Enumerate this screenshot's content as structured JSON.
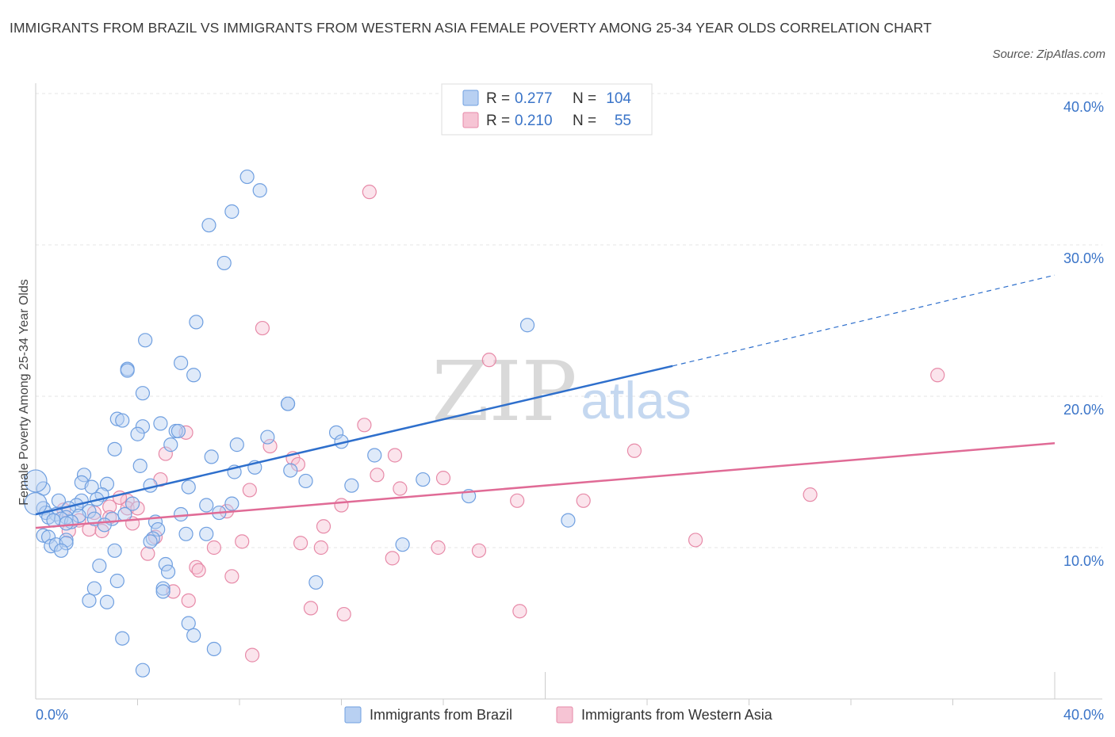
{
  "title": "IMMIGRANTS FROM BRAZIL VS IMMIGRANTS FROM WESTERN ASIA FEMALE POVERTY AMONG 25-34 YEAR OLDS CORRELATION CHART",
  "source": "Source: ZipAtlas.com",
  "watermark": {
    "zip": "ZIP",
    "atlas": "atlas"
  },
  "colors": {
    "brazil_fill": "#b8d0f2",
    "brazil_stroke": "#6f9fe0",
    "brazil_line": "#2e6fcc",
    "wasia_fill": "#f6c4d4",
    "wasia_stroke": "#e78aa8",
    "wasia_line": "#e06b96",
    "value_text": "#3a74c8"
  },
  "legend": {
    "rows": [
      {
        "r_label": "R = ",
        "r_value": "0.277",
        "n_label": "N = ",
        "n_value": "104"
      },
      {
        "r_label": "R = ",
        "r_value": "0.210",
        "n_label": "N = ",
        "n_value": "55"
      }
    ]
  },
  "chart_data": {
    "type": "scatter",
    "ylabel": "Female Poverty Among 25-34 Year Olds",
    "xlim": [
      0,
      40
    ],
    "ylim": [
      0,
      40
    ],
    "x_tick_labels": [
      "0.0%",
      "40.0%"
    ],
    "y_ticks": [
      10,
      20,
      30,
      40
    ],
    "y_tick_labels": [
      "10.0%",
      "20.0%",
      "30.0%",
      "40.0%"
    ],
    "grid": true,
    "legend_position": "bottom-center",
    "series": [
      {
        "name": "Immigrants from Brazil",
        "R": 0.277,
        "N": 104,
        "trend": {
          "x0": 0.0,
          "y0": 12.2,
          "x1": 25.0,
          "y1": 22.0,
          "dash_to_x": 40.0,
          "dash_to_y": 28.0
        },
        "points": [
          [
            8.3,
            34.5
          ],
          [
            8.8,
            33.6
          ],
          [
            7.7,
            32.2
          ],
          [
            6.8,
            31.3
          ],
          [
            7.4,
            28.8
          ],
          [
            6.3,
            24.9
          ],
          [
            19.3,
            24.7
          ],
          [
            4.3,
            23.7
          ],
          [
            5.7,
            22.2
          ],
          [
            3.6,
            21.8
          ],
          [
            3.6,
            21.7
          ],
          [
            6.2,
            21.4
          ],
          [
            4.2,
            20.2
          ],
          [
            9.9,
            19.5
          ],
          [
            9.9,
            19.5
          ],
          [
            3.2,
            18.5
          ],
          [
            3.4,
            18.4
          ],
          [
            4.2,
            18.0
          ],
          [
            4.9,
            18.2
          ],
          [
            5.5,
            17.7
          ],
          [
            5.6,
            17.7
          ],
          [
            4.0,
            17.5
          ],
          [
            11.8,
            17.6
          ],
          [
            9.1,
            17.3
          ],
          [
            12.0,
            17.0
          ],
          [
            7.9,
            16.8
          ],
          [
            5.3,
            16.8
          ],
          [
            3.1,
            16.5
          ],
          [
            13.3,
            16.1
          ],
          [
            6.9,
            16.0
          ],
          [
            4.1,
            15.4
          ],
          [
            8.6,
            15.3
          ],
          [
            10.0,
            15.1
          ],
          [
            7.8,
            15.0
          ],
          [
            1.9,
            14.8
          ],
          [
            15.2,
            14.5
          ],
          [
            1.8,
            14.3
          ],
          [
            2.8,
            14.2
          ],
          [
            10.6,
            14.4
          ],
          [
            4.5,
            14.1
          ],
          [
            6.0,
            14.0
          ],
          [
            2.2,
            14.0
          ],
          [
            12.4,
            14.1
          ],
          [
            0.3,
            13.9
          ],
          [
            2.6,
            13.5
          ],
          [
            17.0,
            13.4
          ],
          [
            1.8,
            13.1
          ],
          [
            0.9,
            13.1
          ],
          [
            2.4,
            13.2
          ],
          [
            3.8,
            12.9
          ],
          [
            7.7,
            12.9
          ],
          [
            6.7,
            12.8
          ],
          [
            1.6,
            12.8
          ],
          [
            0.3,
            12.6
          ],
          [
            1.3,
            12.6
          ],
          [
            2.1,
            12.4
          ],
          [
            7.2,
            12.3
          ],
          [
            0.4,
            12.3
          ],
          [
            0.8,
            12.2
          ],
          [
            5.7,
            12.2
          ],
          [
            3.5,
            12.2
          ],
          [
            1.7,
            12.1
          ],
          [
            0.5,
            12.0
          ],
          [
            1.2,
            12.0
          ],
          [
            1.0,
            11.9
          ],
          [
            2.3,
            11.9
          ],
          [
            0.7,
            11.8
          ],
          [
            1.4,
            11.7
          ],
          [
            4.7,
            11.7
          ],
          [
            3.0,
            11.9
          ],
          [
            1.2,
            11.6
          ],
          [
            2.7,
            11.5
          ],
          [
            20.9,
            11.8
          ],
          [
            4.8,
            11.2
          ],
          [
            5.9,
            10.9
          ],
          [
            6.7,
            10.9
          ],
          [
            0.3,
            10.8
          ],
          [
            4.6,
            10.6
          ],
          [
            0.5,
            10.7
          ],
          [
            1.2,
            10.5
          ],
          [
            0.6,
            10.1
          ],
          [
            0.8,
            10.2
          ],
          [
            4.5,
            10.4
          ],
          [
            1.2,
            10.3
          ],
          [
            14.4,
            10.2
          ],
          [
            1.0,
            9.8
          ],
          [
            3.1,
            9.8
          ],
          [
            5.1,
            8.9
          ],
          [
            2.5,
            8.8
          ],
          [
            5.2,
            8.4
          ],
          [
            3.2,
            7.8
          ],
          [
            11.0,
            7.7
          ],
          [
            2.3,
            7.3
          ],
          [
            5.0,
            7.3
          ],
          [
            5.0,
            7.1
          ],
          [
            2.1,
            6.5
          ],
          [
            2.8,
            6.4
          ],
          [
            6.0,
            5.0
          ],
          [
            6.2,
            4.2
          ],
          [
            3.4,
            4.0
          ],
          [
            7.0,
            3.3
          ],
          [
            4.2,
            1.9
          ],
          [
            0.0,
            12.9
          ],
          [
            0.0,
            14.4
          ]
        ]
      },
      {
        "name": "Immigrants from Western Asia",
        "R": 0.21,
        "N": 55,
        "trend": {
          "x0": 0.0,
          "y0": 11.3,
          "x1": 40.0,
          "y1": 16.9
        },
        "points": [
          [
            13.1,
            33.5
          ],
          [
            8.9,
            24.5
          ],
          [
            17.8,
            22.4
          ],
          [
            35.4,
            21.4
          ],
          [
            12.9,
            18.1
          ],
          [
            5.9,
            17.6
          ],
          [
            23.5,
            16.4
          ],
          [
            9.2,
            16.7
          ],
          [
            5.1,
            16.2
          ],
          [
            14.1,
            16.1
          ],
          [
            10.1,
            15.9
          ],
          [
            10.3,
            15.5
          ],
          [
            13.4,
            14.8
          ],
          [
            16.0,
            14.6
          ],
          [
            4.9,
            14.5
          ],
          [
            14.3,
            13.9
          ],
          [
            8.4,
            13.8
          ],
          [
            30.4,
            13.5
          ],
          [
            3.6,
            13.1
          ],
          [
            3.3,
            13.3
          ],
          [
            18.9,
            13.1
          ],
          [
            21.5,
            13.1
          ],
          [
            2.9,
            12.7
          ],
          [
            12.0,
            12.8
          ],
          [
            3.6,
            12.6
          ],
          [
            4.0,
            12.6
          ],
          [
            7.5,
            12.4
          ],
          [
            1.1,
            12.5
          ],
          [
            2.3,
            12.3
          ],
          [
            2.9,
            12.0
          ],
          [
            1.7,
            11.8
          ],
          [
            3.8,
            11.6
          ],
          [
            11.3,
            11.4
          ],
          [
            2.1,
            11.2
          ],
          [
            1.3,
            11.1
          ],
          [
            2.6,
            11.1
          ],
          [
            4.7,
            10.7
          ],
          [
            8.1,
            10.4
          ],
          [
            10.4,
            10.3
          ],
          [
            25.9,
            10.5
          ],
          [
            7.0,
            10.0
          ],
          [
            11.2,
            10.0
          ],
          [
            15.8,
            10.0
          ],
          [
            17.4,
            9.8
          ],
          [
            4.4,
            9.6
          ],
          [
            14.0,
            9.3
          ],
          [
            6.3,
            8.7
          ],
          [
            6.4,
            8.5
          ],
          [
            7.7,
            8.1
          ],
          [
            5.4,
            7.1
          ],
          [
            6.0,
            6.5
          ],
          [
            10.8,
            6.0
          ],
          [
            12.1,
            5.6
          ],
          [
            19.0,
            5.8
          ],
          [
            8.5,
            2.9
          ]
        ]
      }
    ]
  }
}
